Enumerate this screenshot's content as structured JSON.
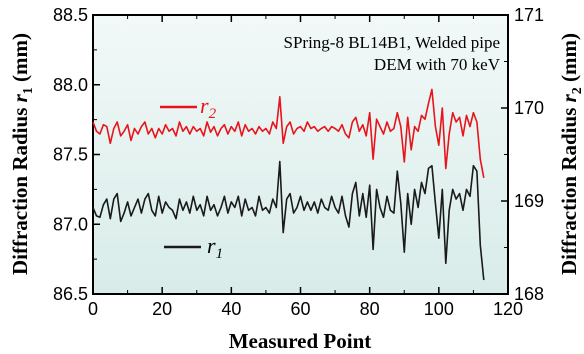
{
  "chart_data": {
    "type": "line",
    "xlabel": "Measured Point",
    "ylabel_left": "Diffraction Radius",
    "ylabel_left_symbol": "r",
    "ylabel_left_sub": "1",
    "ylabel_left_unit": "(mm)",
    "ylabel_right": "Diffraction Radius",
    "ylabel_right_symbol": "r",
    "ylabel_right_sub": "2",
    "ylabel_right_unit": "(mm)",
    "annotation_line1": "SPring-8 BL14B1, Welded pipe",
    "annotation_line2": "DEM with 70 keV",
    "xlim": [
      0,
      120
    ],
    "ylim_left": [
      86.5,
      88.5
    ],
    "ylim_right": [
      168,
      171
    ],
    "x_ticks": [
      "0",
      "20",
      "40",
      "60",
      "80",
      "100",
      "120"
    ],
    "y_left_ticks": [
      "86.5",
      "87.0",
      "87.5",
      "88.0",
      "88.5"
    ],
    "y_right_ticks": [
      "168",
      "169",
      "170",
      "171"
    ],
    "colors": {
      "r1": "#1a1a1a",
      "r2": "#e8141c"
    },
    "series": [
      {
        "name": "r2",
        "label_symbol": "r",
        "label_sub": "2",
        "axis": "right",
        "color": "#e8141c",
        "x": [
          0,
          1,
          2,
          3,
          4,
          5,
          6,
          7,
          8,
          9,
          10,
          11,
          12,
          13,
          14,
          15,
          16,
          17,
          18,
          19,
          20,
          21,
          22,
          23,
          24,
          25,
          26,
          27,
          28,
          29,
          30,
          31,
          32,
          33,
          34,
          35,
          36,
          37,
          38,
          39,
          40,
          41,
          42,
          43,
          44,
          45,
          46,
          47,
          48,
          49,
          50,
          51,
          52,
          53,
          54,
          55,
          56,
          57,
          58,
          59,
          60,
          61,
          62,
          63,
          64,
          65,
          66,
          67,
          68,
          69,
          70,
          71,
          72,
          73,
          74,
          75,
          76,
          77,
          78,
          79,
          80,
          81,
          82,
          83,
          84,
          85,
          86,
          87,
          88,
          89,
          90,
          91,
          92,
          93,
          94,
          95,
          96,
          97,
          98,
          99,
          100,
          101,
          102,
          103,
          104,
          105,
          106,
          107,
          108,
          109,
          110,
          111,
          112,
          113
        ],
        "y": [
          169.85,
          169.75,
          169.72,
          169.82,
          169.8,
          169.62,
          169.78,
          169.85,
          169.7,
          169.75,
          169.82,
          169.65,
          169.78,
          169.72,
          169.8,
          169.85,
          169.72,
          169.78,
          169.68,
          169.78,
          169.72,
          169.82,
          169.75,
          169.78,
          169.7,
          169.85,
          169.75,
          169.8,
          169.72,
          169.8,
          169.75,
          169.78,
          169.7,
          169.85,
          169.74,
          169.8,
          169.7,
          169.78,
          169.82,
          169.72,
          169.8,
          169.75,
          169.85,
          169.7,
          169.82,
          169.75,
          169.78,
          169.72,
          169.8,
          169.75,
          169.78,
          169.72,
          169.85,
          169.78,
          170.12,
          169.62,
          169.8,
          169.85,
          169.72,
          169.78,
          169.8,
          169.75,
          169.85,
          169.78,
          169.8,
          169.75,
          169.78,
          169.8,
          169.75,
          169.8,
          169.78,
          169.75,
          169.82,
          169.72,
          169.68,
          169.85,
          169.9,
          169.75,
          169.82,
          169.7,
          169.95,
          169.45,
          169.88,
          169.8,
          169.72,
          169.85,
          169.75,
          169.78,
          169.95,
          169.8,
          169.42,
          169.9,
          169.55,
          169.8,
          169.75,
          169.92,
          169.88,
          170.05,
          170.2,
          169.8,
          169.6,
          170.0,
          169.35,
          169.72,
          169.95,
          169.85,
          169.9,
          169.7,
          169.92,
          169.8,
          169.95,
          169.85,
          169.45,
          169.25
        ]
      },
      {
        "name": "r1",
        "label_symbol": "r",
        "label_sub": "1",
        "axis": "left",
        "color": "#1a1a1a",
        "x": [
          0,
          1,
          2,
          3,
          4,
          5,
          6,
          7,
          8,
          9,
          10,
          11,
          12,
          13,
          14,
          15,
          16,
          17,
          18,
          19,
          20,
          21,
          22,
          23,
          24,
          25,
          26,
          27,
          28,
          29,
          30,
          31,
          32,
          33,
          34,
          35,
          36,
          37,
          38,
          39,
          40,
          41,
          42,
          43,
          44,
          45,
          46,
          47,
          48,
          49,
          50,
          51,
          52,
          53,
          54,
          55,
          56,
          57,
          58,
          59,
          60,
          61,
          62,
          63,
          64,
          65,
          66,
          67,
          68,
          69,
          70,
          71,
          72,
          73,
          74,
          75,
          76,
          77,
          78,
          79,
          80,
          81,
          82,
          83,
          84,
          85,
          86,
          87,
          88,
          89,
          90,
          91,
          92,
          93,
          94,
          95,
          96,
          97,
          98,
          99,
          100,
          101,
          102,
          103,
          104,
          105,
          106,
          107,
          108,
          109,
          110,
          111,
          112,
          113
        ],
        "y": [
          87.12,
          87.06,
          87.05,
          87.14,
          87.18,
          87.04,
          87.18,
          87.22,
          87.02,
          87.08,
          87.16,
          87.06,
          87.12,
          87.18,
          87.08,
          87.18,
          87.22,
          87.1,
          87.06,
          87.2,
          87.08,
          87.16,
          87.12,
          87.1,
          87.04,
          87.18,
          87.1,
          87.16,
          87.08,
          87.2,
          87.1,
          87.14,
          87.06,
          87.2,
          87.1,
          87.14,
          87.06,
          87.12,
          87.2,
          87.08,
          87.16,
          87.12,
          87.2,
          87.06,
          87.18,
          87.1,
          87.12,
          87.06,
          87.2,
          87.1,
          87.12,
          87.08,
          87.18,
          87.12,
          87.45,
          86.94,
          87.18,
          87.22,
          87.08,
          87.12,
          87.2,
          87.1,
          87.16,
          87.1,
          87.16,
          87.08,
          87.18,
          87.12,
          87.1,
          87.2,
          87.12,
          87.08,
          87.2,
          87.06,
          86.98,
          87.22,
          87.3,
          87.06,
          87.22,
          87.05,
          87.28,
          86.82,
          87.25,
          87.12,
          87.05,
          87.2,
          87.1,
          87.08,
          87.38,
          87.15,
          86.8,
          87.22,
          87.0,
          87.25,
          87.12,
          87.3,
          87.22,
          87.4,
          87.42,
          87.15,
          86.9,
          87.25,
          86.72,
          87.1,
          87.25,
          87.18,
          87.22,
          87.1,
          87.25,
          87.2,
          87.42,
          87.38,
          86.85,
          86.6
        ]
      }
    ],
    "grid": false,
    "legend": "inline labels"
  }
}
